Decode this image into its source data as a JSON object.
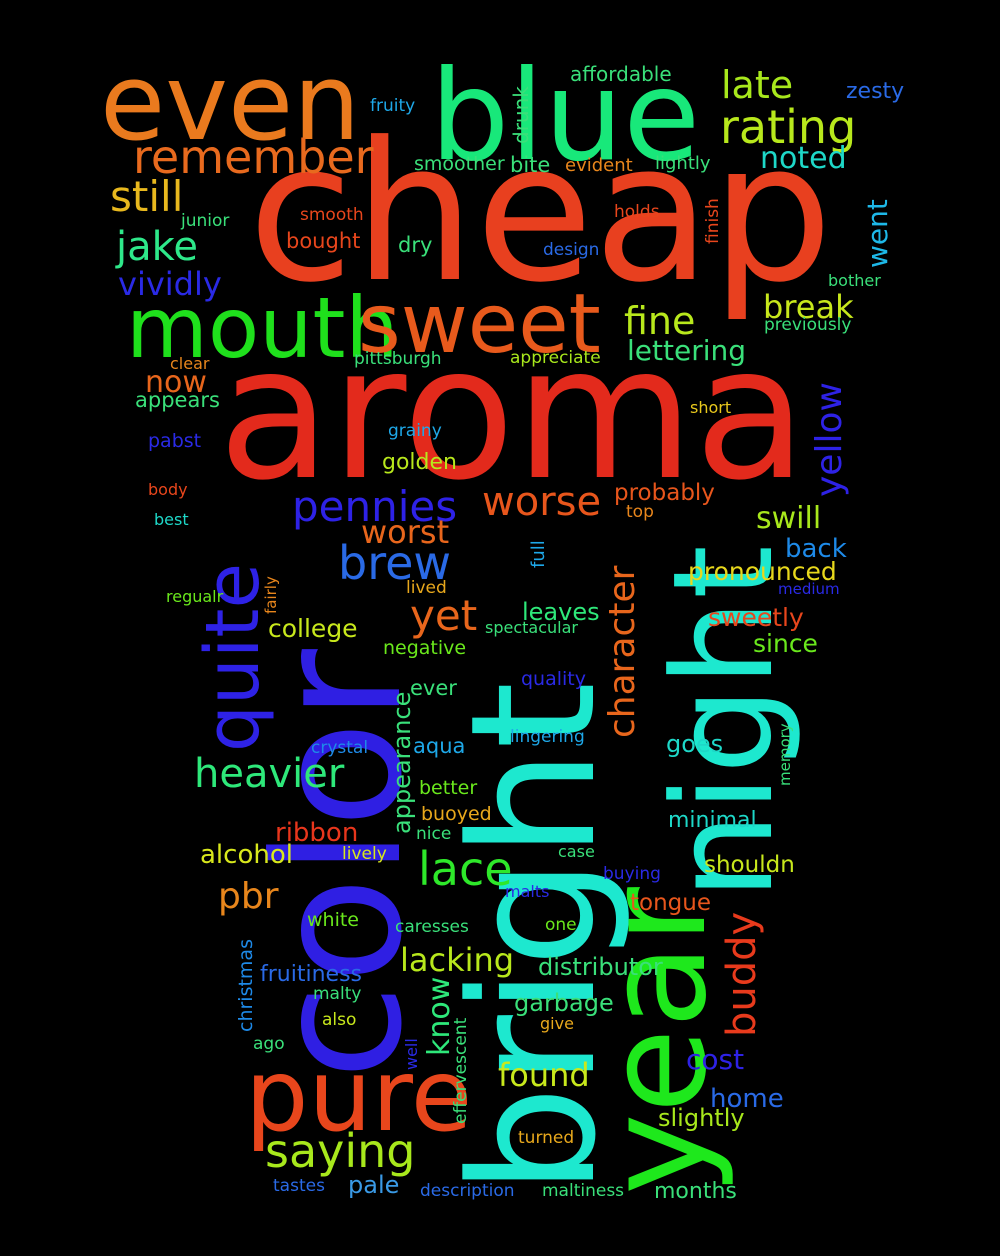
{
  "words": [
    {
      "text": "cheap",
      "color": "#e8401f"
    },
    {
      "text": "aroma",
      "color": "#e32a1c"
    },
    {
      "text": "color",
      "color": "#2f1fe3"
    },
    {
      "text": "bright",
      "color": "#1de8cf"
    },
    {
      "text": "year",
      "color": "#1ee81c"
    },
    {
      "text": "night",
      "color": "#1de8cf"
    },
    {
      "text": "blue",
      "color": "#18e87a"
    },
    {
      "text": "even",
      "color": "#ea7a1e"
    },
    {
      "text": "mouth",
      "color": "#1fe01c"
    },
    {
      "text": "sweet",
      "color": "#e85a1c"
    },
    {
      "text": "pure",
      "color": "#e8461c"
    },
    {
      "text": "quite",
      "color": "#2e22e6"
    },
    {
      "text": "remember",
      "color": "#e86a1e"
    },
    {
      "text": "rating",
      "color": "#b8e81c"
    },
    {
      "text": "late",
      "color": "#a8e81c"
    },
    {
      "text": "still",
      "color": "#e8b81e"
    },
    {
      "text": "jake",
      "color": "#2ee88a"
    },
    {
      "text": "vividly",
      "color": "#2a2ae6"
    },
    {
      "text": "fine",
      "color": "#b8e81c"
    },
    {
      "text": "break",
      "color": "#c8e81c"
    },
    {
      "text": "noted",
      "color": "#1ed8c8"
    },
    {
      "text": "went",
      "color": "#1eb8e8"
    },
    {
      "text": "lettering",
      "color": "#3ae07a"
    },
    {
      "text": "yellow",
      "color": "#2e22e6"
    },
    {
      "text": "pennies",
      "color": "#2e22e6"
    },
    {
      "text": "worse",
      "color": "#e8561c"
    },
    {
      "text": "brew",
      "color": "#2a6ae6"
    },
    {
      "text": "worst",
      "color": "#e8661c"
    },
    {
      "text": "yet",
      "color": "#e8661c"
    },
    {
      "text": "character",
      "color": "#e8661c"
    },
    {
      "text": "heavier",
      "color": "#2ee87a"
    },
    {
      "text": "saying",
      "color": "#a8e81c"
    },
    {
      "text": "lace",
      "color": "#2ee82a"
    },
    {
      "text": "now",
      "color": "#e8661c"
    },
    {
      "text": "swill",
      "color": "#a8e81c"
    },
    {
      "text": "probably",
      "color": "#e8561c"
    },
    {
      "text": "back",
      "color": "#1e8ae8"
    },
    {
      "text": "pronounced",
      "color": "#e8d81c"
    },
    {
      "text": "sweetly",
      "color": "#e8461c"
    },
    {
      "text": "since",
      "color": "#6ae81c"
    },
    {
      "text": "buddy",
      "color": "#e83a1c"
    },
    {
      "text": "college",
      "color": "#c8e81c"
    },
    {
      "text": "leaves",
      "color": "#2ee87a"
    },
    {
      "text": "golden",
      "color": "#b8e81c"
    },
    {
      "text": "ribbon",
      "color": "#e8361c"
    },
    {
      "text": "alcohol",
      "color": "#d8e81c"
    },
    {
      "text": "pbr",
      "color": "#e8861c"
    },
    {
      "text": "appearance",
      "color": "#3ae07a"
    },
    {
      "text": "lacking",
      "color": "#b8e81c"
    },
    {
      "text": "know",
      "color": "#2ee87a"
    },
    {
      "text": "distributor",
      "color": "#3ae07a"
    },
    {
      "text": "found",
      "color": "#c8e81c"
    },
    {
      "text": "cost",
      "color": "#2e22e6"
    },
    {
      "text": "home",
      "color": "#2a6ae6"
    },
    {
      "text": "slightly",
      "color": "#a8e81c"
    },
    {
      "text": "months",
      "color": "#3ae07a"
    },
    {
      "text": "pale",
      "color": "#3a9ae6"
    },
    {
      "text": "tongue",
      "color": "#e8561c"
    },
    {
      "text": "shouldn",
      "color": "#c8e81c"
    },
    {
      "text": "minimal",
      "color": "#1ed8c8"
    },
    {
      "text": "goes",
      "color": "#1ed8c8"
    },
    {
      "text": "garbage",
      "color": "#3ae07a"
    },
    {
      "text": "fruitiness",
      "color": "#2a6ae6"
    },
    {
      "text": "affordable",
      "color": "#3ae07a"
    },
    {
      "text": "zesty",
      "color": "#2a6ae6"
    },
    {
      "text": "drunk",
      "color": "#3ae07a"
    },
    {
      "text": "smoother",
      "color": "#3ae07a"
    },
    {
      "text": "bite",
      "color": "#3ae07a"
    },
    {
      "text": "evident",
      "color": "#e8861c"
    },
    {
      "text": "lightly",
      "color": "#3ae07a"
    },
    {
      "text": "fruity",
      "color": "#1ea8e8"
    },
    {
      "text": "junior",
      "color": "#3ae07a"
    },
    {
      "text": "smooth",
      "color": "#e8461c"
    },
    {
      "text": "holds",
      "color": "#e8461c"
    },
    {
      "text": "finish",
      "color": "#e8461c"
    },
    {
      "text": "bought",
      "color": "#e8461c"
    },
    {
      "text": "dry",
      "color": "#3ae07a"
    },
    {
      "text": "design",
      "color": "#2a6ae6"
    },
    {
      "text": "bother",
      "color": "#3ae07a"
    },
    {
      "text": "previously",
      "color": "#3ae07a"
    },
    {
      "text": "clear",
      "color": "#e8861c"
    },
    {
      "text": "pittsburgh",
      "color": "#3ae07a"
    },
    {
      "text": "appreciate",
      "color": "#a8e81c"
    },
    {
      "text": "appears",
      "color": "#3ae07a"
    },
    {
      "text": "short",
      "color": "#e8c81c"
    },
    {
      "text": "pabst",
      "color": "#2a2ae6"
    },
    {
      "text": "grainy",
      "color": "#1ea8e8"
    },
    {
      "text": "body",
      "color": "#e8461c"
    },
    {
      "text": "best",
      "color": "#1ed8c8"
    },
    {
      "text": "top",
      "color": "#e8861c"
    },
    {
      "text": "full",
      "color": "#1ea8e8"
    },
    {
      "text": "fairly",
      "color": "#e8861c"
    },
    {
      "text": "regualr",
      "color": "#6ae81c"
    },
    {
      "text": "lived",
      "color": "#e8a81c"
    },
    {
      "text": "medium",
      "color": "#2a2ae6"
    },
    {
      "text": "spectacular",
      "color": "#3ae07a"
    },
    {
      "text": "negative",
      "color": "#6ae81c"
    },
    {
      "text": "ever",
      "color": "#3ae07a"
    },
    {
      "text": "quality",
      "color": "#2a2ae6"
    },
    {
      "text": "crystal",
      "color": "#1e8ae8"
    },
    {
      "text": "aqua",
      "color": "#1ea8e8"
    },
    {
      "text": "lingering",
      "color": "#1ea8e8"
    },
    {
      "text": "memory",
      "color": "#3ae07a"
    },
    {
      "text": "better",
      "color": "#6ae81c"
    },
    {
      "text": "buoyed",
      "color": "#e8a81c"
    },
    {
      "text": "nice",
      "color": "#3ae07a"
    },
    {
      "text": "lively",
      "color": "#d8e81c"
    },
    {
      "text": "case",
      "color": "#3ae07a"
    },
    {
      "text": "buying",
      "color": "#2a2ae6"
    },
    {
      "text": "malts",
      "color": "#2a2ae6"
    },
    {
      "text": "white",
      "color": "#6ae81c"
    },
    {
      "text": "caresses",
      "color": "#3ae07a"
    },
    {
      "text": "one",
      "color": "#6ae81c"
    },
    {
      "text": "christmas",
      "color": "#1e8ae8"
    },
    {
      "text": "malty",
      "color": "#3ae07a"
    },
    {
      "text": "also",
      "color": "#c8e81c"
    },
    {
      "text": "effervescent",
      "color": "#3ae07a"
    },
    {
      "text": "give",
      "color": "#e8a81c"
    },
    {
      "text": "well",
      "color": "#2a2ae6"
    },
    {
      "text": "ago",
      "color": "#3ae07a"
    },
    {
      "text": "turned",
      "color": "#e8a81c"
    },
    {
      "text": "tastes",
      "color": "#2a6ae6"
    },
    {
      "text": "description",
      "color": "#2a6ae6"
    },
    {
      "text": "maltiness",
      "color": "#3ae07a"
    }
  ]
}
